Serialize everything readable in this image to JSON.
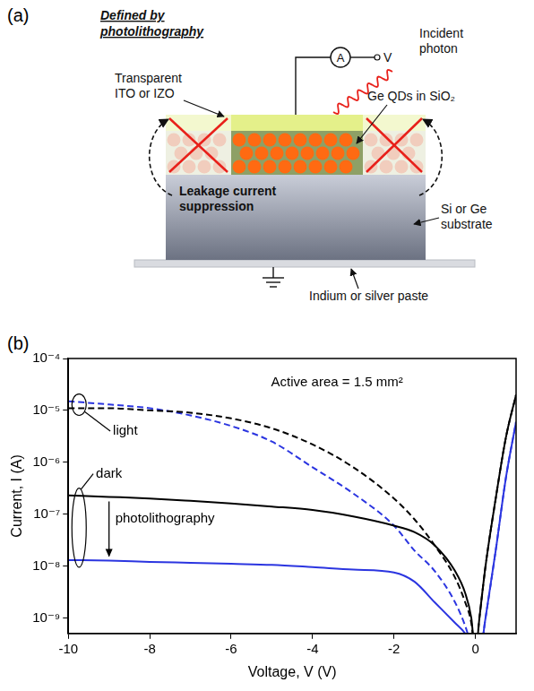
{
  "diagram": {
    "panel": "(a)",
    "heading": [
      "Defined by",
      "photolithography"
    ],
    "photon": [
      "Incident",
      "photon"
    ],
    "meter": "A",
    "terminal": "V",
    "electrode": [
      "Transparent",
      "ITO or IZO"
    ],
    "quantum_dots": "Ge QDs in SiO₂",
    "leakage": [
      "Leakage current",
      "suppression"
    ],
    "substrate": [
      "Si or Ge",
      "substrate"
    ],
    "contact": "Indium or silver paste"
  },
  "chart_data": {
    "type": "line",
    "panel": "(b)",
    "x_label": "Voltage, V (V)",
    "y_label": "Current, I (A)",
    "x": [
      -10,
      -9,
      -8,
      -7,
      -6,
      -5,
      -4,
      -3,
      -2,
      -1.5,
      -1,
      -0.5,
      -0.25,
      -0.1,
      0,
      0.1,
      0.25,
      0.5,
      0.75,
      1
    ],
    "series": [
      {
        "color": "#000000",
        "line_style": "solid",
        "values": [
          2.3e-07,
          2.15e-07,
          2e-07,
          1.8e-07,
          1.6e-07,
          1.4e-07,
          1.2e-07,
          9e-08,
          6e-08,
          4.5e-08,
          2.5e-08,
          8e-09,
          3e-09,
          1e-09,
          2e-10,
          1e-09,
          1e-08,
          2e-07,
          3e-06,
          2e-05
        ]
      },
      {
        "color": "#000000",
        "line_style": "dashed",
        "values": [
          1.1e-05,
          1.1e-05,
          1e-05,
          9e-06,
          7e-06,
          4.5e-06,
          2.2e-06,
          8e-07,
          2e-07,
          8e-08,
          2.5e-08,
          6e-09,
          2e-09,
          8e-10,
          2e-10,
          1e-09,
          1e-08,
          2e-07,
          3e-06,
          2e-05
        ]
      },
      {
        "color": "#2b35e0",
        "line_style": "solid",
        "values": [
          1.3e-08,
          1.27e-08,
          1.2e-08,
          1.15e-08,
          1.1e-08,
          1.05e-08,
          9.5e-09,
          8.5e-09,
          7.5e-09,
          5e-09,
          2e-09,
          8e-10,
          5e-10,
          3e-10,
          2e-10,
          2e-10,
          1e-09,
          2e-08,
          5e-07,
          6e-06
        ]
      },
      {
        "color": "#2b35e0",
        "line_style": "dashed",
        "values": [
          1.5e-05,
          1.3e-05,
          1.1e-05,
          8e-06,
          5e-06,
          2.5e-06,
          8e-07,
          2.5e-07,
          6e-08,
          2e-08,
          8e-09,
          2e-09,
          7e-10,
          3e-10,
          2e-10,
          2e-10,
          1e-09,
          2e-08,
          5e-07,
          6e-06
        ]
      }
    ],
    "xlim": [
      -10,
      1
    ],
    "xticks": [
      -10,
      -8,
      -6,
      -4,
      -2,
      0
    ],
    "ylim": [
      5e-10,
      0.0001
    ],
    "yticks": [
      {
        "value": 1e-09,
        "label": "10⁻⁹"
      },
      {
        "value": 1e-08,
        "label": "10⁻⁸"
      },
      {
        "value": 1e-07,
        "label": "10⁻⁷"
      },
      {
        "value": 1e-06,
        "label": "10⁻⁶"
      },
      {
        "value": 1e-05,
        "label": "10⁻⁵"
      },
      {
        "value": 0.0001,
        "label": "10⁻⁴"
      }
    ],
    "log": "y",
    "grid": false,
    "annotations": [
      {
        "text": "Active area = 1.5 mm²",
        "x": -3.4,
        "y": 3.5e-05
      },
      {
        "text": "light",
        "x": -8.6,
        "y": 4e-06,
        "series": [
          1,
          3
        ]
      },
      {
        "text": "dark",
        "x": -9.0,
        "y": 6e-07,
        "series": [
          0,
          2
        ]
      },
      {
        "text": "photolithography",
        "x": -9,
        "y": 8e-08,
        "arrow": [
          0,
          2
        ]
      }
    ]
  }
}
